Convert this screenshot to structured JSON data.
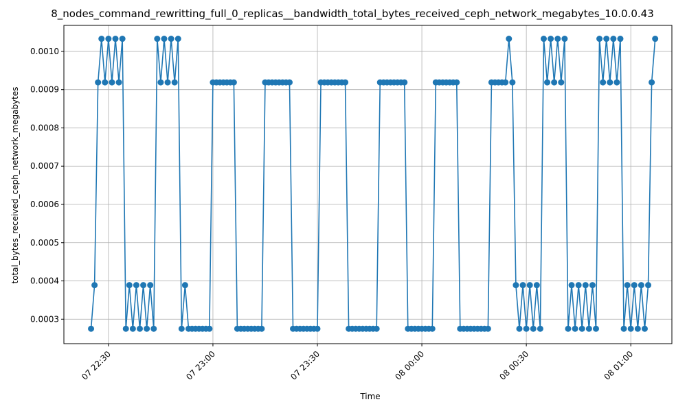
{
  "chart_data": {
    "type": "line",
    "title": "8_nodes_command_rewritting_full_0_replicas__bandwidth_total_bytes_received_ceph_network_megabytes_10.0.0.43",
    "xlabel": "Time",
    "ylabel": "total_bytes_received_ceph_network_megabytes",
    "grid": true,
    "legend": "none",
    "marker": "circle",
    "color": "#1f77b4",
    "x_start": "07 22:25",
    "x_step_minutes": 1,
    "xticks": [
      {
        "label": "07 22:30",
        "minute": 5
      },
      {
        "label": "07 23:00",
        "minute": 35
      },
      {
        "label": "07 23:30",
        "minute": 65
      },
      {
        "label": "08 00:00",
        "minute": 95
      },
      {
        "label": "08 00:30",
        "minute": 125
      },
      {
        "label": "08 01:00",
        "minute": 155
      }
    ],
    "yticks": [
      {
        "label": "0.0003",
        "value": 0.0003
      },
      {
        "label": "0.0004",
        "value": 0.0004
      },
      {
        "label": "0.0005",
        "value": 0.0005
      },
      {
        "label": "0.0006",
        "value": 0.0006
      },
      {
        "label": "0.0007",
        "value": 0.0007
      },
      {
        "label": "0.0008",
        "value": 0.0008
      },
      {
        "label": "0.0009",
        "value": 0.0009
      },
      {
        "label": "0.0010",
        "value": 0.001
      }
    ],
    "xlim_minutes": [
      -7.8,
      166.8
    ],
    "ylim": [
      0.000236,
      0.001068
    ],
    "series": [
      {
        "values": [
          0.000275,
          0.000389,
          0.000919,
          0.001033,
          0.000919,
          0.001033,
          0.000919,
          0.001033,
          0.000919,
          0.001033,
          0.000275,
          0.000389,
          0.000275,
          0.000389,
          0.000275,
          0.000389,
          0.000275,
          0.000389,
          0.000275,
          0.001033,
          0.000919,
          0.001033,
          0.000919,
          0.001033,
          0.000919,
          0.001033,
          0.000275,
          0.000389,
          0.000275,
          0.000275,
          0.000275,
          0.000275,
          0.000275,
          0.000275,
          0.000275,
          0.000919,
          0.000919,
          0.000919,
          0.000919,
          0.000919,
          0.000919,
          0.000919,
          0.000275,
          0.000275,
          0.000275,
          0.000275,
          0.000275,
          0.000275,
          0.000275,
          0.000275,
          0.000919,
          0.000919,
          0.000919,
          0.000919,
          0.000919,
          0.000919,
          0.000919,
          0.000919,
          0.000275,
          0.000275,
          0.000275,
          0.000275,
          0.000275,
          0.000275,
          0.000275,
          0.000275,
          0.000919,
          0.000919,
          0.000919,
          0.000919,
          0.000919,
          0.000919,
          0.000919,
          0.000919,
          0.000275,
          0.000275,
          0.000275,
          0.000275,
          0.000275,
          0.000275,
          0.000275,
          0.000275,
          0.000275,
          0.000919,
          0.000919,
          0.000919,
          0.000919,
          0.000919,
          0.000919,
          0.000919,
          0.000919,
          0.000275,
          0.000275,
          0.000275,
          0.000275,
          0.000275,
          0.000275,
          0.000275,
          0.000275,
          0.000919,
          0.000919,
          0.000919,
          0.000919,
          0.000919,
          0.000919,
          0.000919,
          0.000275,
          0.000275,
          0.000275,
          0.000275,
          0.000275,
          0.000275,
          0.000275,
          0.000275,
          0.000275,
          0.000919,
          0.000919,
          0.000919,
          0.000919,
          0.000919,
          0.001033,
          0.000919,
          0.000389,
          0.000275,
          0.000389,
          0.000275,
          0.000389,
          0.000275,
          0.000389,
          0.000275,
          0.001033,
          0.000919,
          0.001033,
          0.000919,
          0.001033,
          0.000919,
          0.001033,
          0.000275,
          0.000389,
          0.000275,
          0.000389,
          0.000275,
          0.000389,
          0.000275,
          0.000389,
          0.000275,
          0.001033,
          0.000919,
          0.001033,
          0.000919,
          0.001033,
          0.000919,
          0.001033,
          0.000275,
          0.000389,
          0.000275,
          0.000389,
          0.000275,
          0.000389,
          0.000275,
          0.000389,
          0.000919,
          0.001033
        ]
      }
    ]
  }
}
